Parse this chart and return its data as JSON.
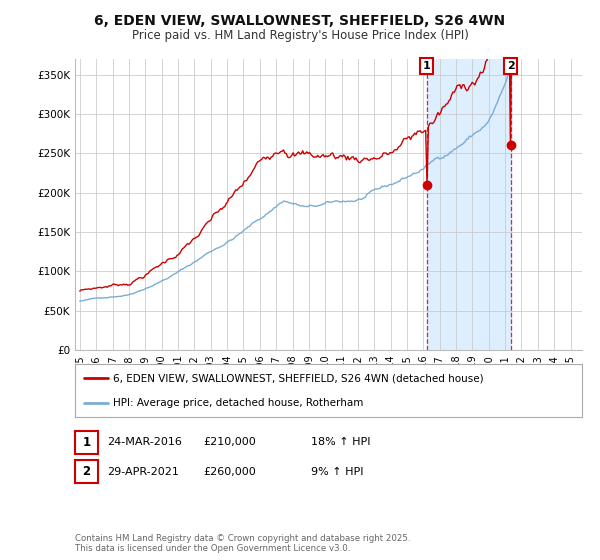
{
  "title": "6, EDEN VIEW, SWALLOWNEST, SHEFFIELD, S26 4WN",
  "subtitle": "Price paid vs. HM Land Registry's House Price Index (HPI)",
  "background_color": "#ffffff",
  "plot_bg_color": "#ffffff",
  "grid_color": "#cccccc",
  "line1_color": "#cc0000",
  "line2_color": "#7aadd4",
  "shade_color": "#ddeeff",
  "marker1_year": 2016.21,
  "marker2_year": 2021.33,
  "marker1_price": 210000,
  "marker2_price": 260000,
  "legend1": "6, EDEN VIEW, SWALLOWNEST, SHEFFIELD, S26 4WN (detached house)",
  "legend2": "HPI: Average price, detached house, Rotherham",
  "footer": "Contains HM Land Registry data © Crown copyright and database right 2025.\nThis data is licensed under the Open Government Licence v3.0.",
  "ylim": [
    0,
    370000
  ],
  "ytick_vals": [
    0,
    50000,
    100000,
    150000,
    200000,
    250000,
    300000,
    350000
  ],
  "ytick_labels": [
    "£0",
    "£50K",
    "£100K",
    "£150K",
    "£200K",
    "£250K",
    "£300K",
    "£350K"
  ],
  "xstart": 1995,
  "xend": 2025,
  "title_fontsize": 10,
  "subtitle_fontsize": 8.5,
  "tick_fontsize": 7.5,
  "legend_fontsize": 7.5
}
